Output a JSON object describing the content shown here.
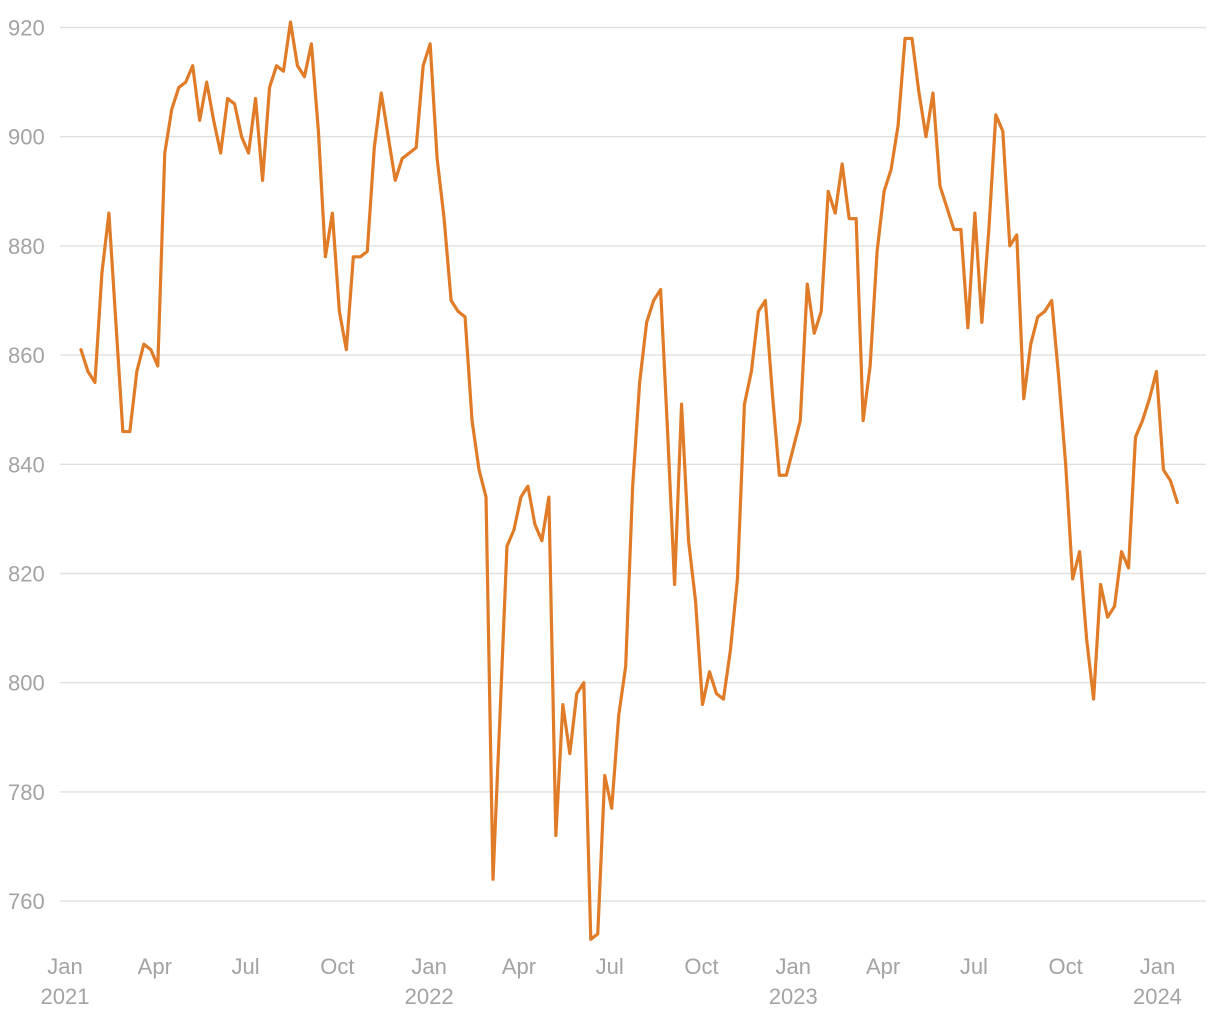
{
  "chart_data": {
    "type": "line",
    "title": "",
    "xlabel": "",
    "ylabel": "",
    "ylim": [
      753,
      923
    ],
    "y_ticks": [
      760,
      780,
      800,
      820,
      840,
      860,
      880,
      900,
      920
    ],
    "x_ticks": [
      {
        "date": "2021-01-01",
        "label": "Jan",
        "year": "2021"
      },
      {
        "date": "2021-04-01",
        "label": "Apr",
        "year": ""
      },
      {
        "date": "2021-07-01",
        "label": "Jul",
        "year": ""
      },
      {
        "date": "2021-10-01",
        "label": "Oct",
        "year": ""
      },
      {
        "date": "2022-01-01",
        "label": "Jan",
        "year": "2022"
      },
      {
        "date": "2022-04-01",
        "label": "Apr",
        "year": ""
      },
      {
        "date": "2022-07-01",
        "label": "Jul",
        "year": ""
      },
      {
        "date": "2022-10-01",
        "label": "Oct",
        "year": ""
      },
      {
        "date": "2023-01-01",
        "label": "Jan",
        "year": "2023"
      },
      {
        "date": "2023-04-01",
        "label": "Apr",
        "year": ""
      },
      {
        "date": "2023-07-01",
        "label": "Jul",
        "year": ""
      },
      {
        "date": "2023-10-01",
        "label": "Oct",
        "year": ""
      },
      {
        "date": "2024-01-01",
        "label": "Jan",
        "year": "2024"
      }
    ],
    "grid": true,
    "line_color": "#e07b28",
    "series": [
      {
        "x": [
          "2021-01-17",
          "2021-01-24",
          "2021-01-31",
          "2021-02-07",
          "2021-02-14",
          "2021-02-21",
          "2021-02-28",
          "2021-03-07",
          "2021-03-14",
          "2021-03-21",
          "2021-03-28",
          "2021-04-04",
          "2021-04-11",
          "2021-04-18",
          "2021-04-25",
          "2021-05-02",
          "2021-05-09",
          "2021-05-16",
          "2021-05-23",
          "2021-05-30",
          "2021-06-06",
          "2021-06-13",
          "2021-06-20",
          "2021-06-27",
          "2021-07-04",
          "2021-07-11",
          "2021-07-18",
          "2021-07-25",
          "2021-08-01",
          "2021-08-08",
          "2021-08-15",
          "2021-08-22",
          "2021-08-29",
          "2021-09-05",
          "2021-09-12",
          "2021-09-19",
          "2021-09-26",
          "2021-10-03",
          "2021-10-10",
          "2021-10-17",
          "2021-10-24",
          "2021-10-31",
          "2021-11-07",
          "2021-11-14",
          "2021-11-21",
          "2021-11-28",
          "2021-12-05",
          "2021-12-12",
          "2021-12-19",
          "2021-12-26",
          "2022-01-02",
          "2022-01-09",
          "2022-01-16",
          "2022-01-23",
          "2022-01-30",
          "2022-02-06",
          "2022-02-13",
          "2022-02-20",
          "2022-02-27",
          "2022-03-06",
          "2022-03-13",
          "2022-03-20",
          "2022-03-27",
          "2022-04-03",
          "2022-04-10",
          "2022-04-17",
          "2022-04-24",
          "2022-05-01",
          "2022-05-08",
          "2022-05-15",
          "2022-05-22",
          "2022-05-29",
          "2022-06-05",
          "2022-06-12",
          "2022-06-19",
          "2022-06-26",
          "2022-07-03",
          "2022-07-10",
          "2022-07-17",
          "2022-07-24",
          "2022-07-31",
          "2022-08-07",
          "2022-08-14",
          "2022-08-21",
          "2022-08-28",
          "2022-09-04",
          "2022-09-11",
          "2022-09-18",
          "2022-09-25",
          "2022-10-02",
          "2022-10-09",
          "2022-10-16",
          "2022-10-23",
          "2022-10-30",
          "2022-11-06",
          "2022-11-13",
          "2022-11-20",
          "2022-11-27",
          "2022-12-04",
          "2022-12-11",
          "2022-12-18",
          "2022-12-25",
          "2023-01-01",
          "2023-01-08",
          "2023-01-15",
          "2023-01-22",
          "2023-01-29",
          "2023-02-05",
          "2023-02-12",
          "2023-02-19",
          "2023-02-26",
          "2023-03-05",
          "2023-03-12",
          "2023-03-19",
          "2023-03-26",
          "2023-04-02",
          "2023-04-09",
          "2023-04-16",
          "2023-04-23",
          "2023-04-30",
          "2023-05-07",
          "2023-05-14",
          "2023-05-21",
          "2023-05-28",
          "2023-06-04",
          "2023-06-11",
          "2023-06-18",
          "2023-06-25",
          "2023-07-02",
          "2023-07-09",
          "2023-07-16",
          "2023-07-23",
          "2023-07-30",
          "2023-08-06",
          "2023-08-13",
          "2023-08-20",
          "2023-08-27",
          "2023-09-03",
          "2023-09-10",
          "2023-09-17",
          "2023-09-24",
          "2023-10-01",
          "2023-10-08",
          "2023-10-15",
          "2023-10-22",
          "2023-10-29",
          "2023-11-05",
          "2023-11-12",
          "2023-11-19",
          "2023-11-26",
          "2023-12-03",
          "2023-12-10",
          "2023-12-17",
          "2023-12-24",
          "2023-12-31",
          "2024-01-07",
          "2024-01-14",
          "2024-01-21"
        ],
        "values": [
          861,
          857,
          855,
          875,
          886,
          866,
          846,
          846,
          857,
          862,
          861,
          858,
          897,
          905,
          909,
          910,
          913,
          903,
          910,
          903,
          897,
          907,
          906,
          900,
          897,
          907,
          892,
          909,
          913,
          912,
          921,
          913,
          911,
          917,
          901,
          878,
          886,
          868,
          861,
          878,
          878,
          879,
          898,
          908,
          900,
          892,
          896,
          897,
          898,
          913,
          917,
          896,
          885,
          870,
          868,
          867,
          848,
          839,
          834,
          764,
          794,
          825,
          828,
          834,
          836,
          829,
          826,
          834,
          772,
          796,
          787,
          798,
          800,
          753,
          754,
          783,
          777,
          794,
          803,
          836,
          855,
          866,
          870,
          872,
          846,
          818,
          851,
          826,
          815,
          796,
          802,
          798,
          797,
          806,
          819,
          851,
          857,
          868,
          870,
          853,
          838,
          838,
          843,
          848,
          873,
          864,
          868,
          890,
          886,
          895,
          885,
          885,
          848,
          858,
          879,
          890,
          894,
          902,
          918,
          918,
          908,
          900,
          908,
          891,
          887,
          883,
          883,
          865,
          886,
          866,
          883,
          904,
          901,
          880,
          882,
          852,
          862,
          867,
          868,
          870,
          856,
          840,
          819,
          824,
          808,
          797,
          818,
          812,
          814,
          824,
          821,
          845,
          848,
          852,
          857,
          839,
          837,
          833
        ]
      }
    ]
  }
}
